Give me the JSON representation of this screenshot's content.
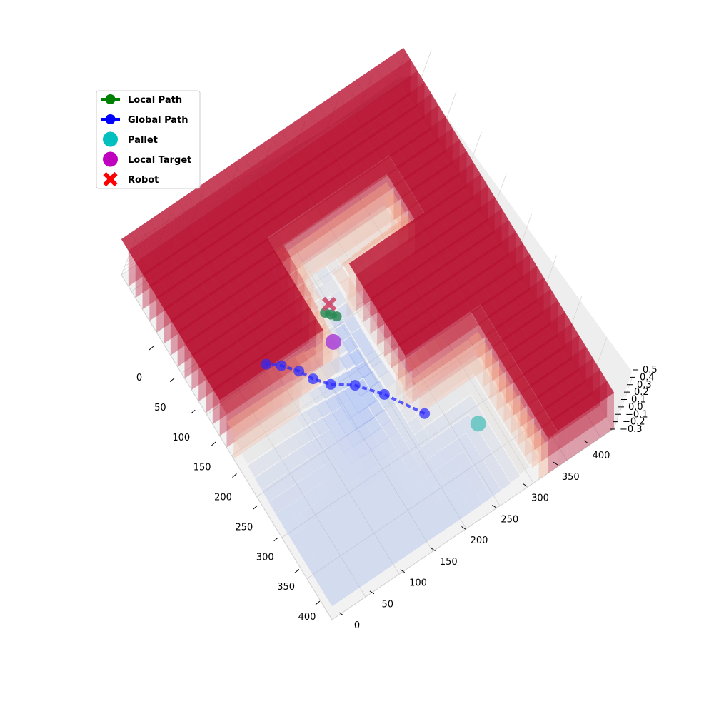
{
  "chart_data": {
    "type": "surface3d",
    "title": "",
    "xlabel": "",
    "ylabel": "",
    "zlabel": "",
    "xlim": [
      0,
      420
    ],
    "ylim": [
      0,
      420
    ],
    "zlim": [
      -0.3,
      0.5
    ],
    "x_ticks": [
      "0",
      "50",
      "100",
      "150",
      "200",
      "250",
      "300",
      "350",
      "400"
    ],
    "y_ticks": [
      "0",
      "50",
      "100",
      "150",
      "200",
      "250",
      "300",
      "350",
      "400"
    ],
    "z_ticks": [
      "−0.3",
      "−0.2",
      "−0.1",
      "0.0",
      "0.1",
      "0.2",
      "0.3",
      "0.4",
      "0.5"
    ],
    "grid": true,
    "colormap": "coolwarm",
    "legend_position": "top-left",
    "legend": [
      {
        "label": "Local Path",
        "marker": "line-circle",
        "color": "#008000"
      },
      {
        "label": "Global Path",
        "marker": "line-circle",
        "color": "#0000ff"
      },
      {
        "label": "Pallet",
        "marker": "circle",
        "color": "#00bfbf"
      },
      {
        "label": "Local Target",
        "marker": "circle",
        "color": "#bf00bf"
      },
      {
        "label": "Robot",
        "marker": "x",
        "color": "#ff0000"
      }
    ],
    "global_path": {
      "color": "#2a2aff",
      "points": [
        [
          220,
          110
        ],
        [
          190,
          150
        ],
        [
          165,
          175
        ],
        [
          140,
          190
        ],
        [
          125,
          205
        ],
        [
          115,
          220
        ],
        [
          100,
          235
        ],
        [
          85,
          245
        ]
      ]
    },
    "local_path": {
      "color": "#2e8b57",
      "points": [
        [
          180,
          255
        ],
        [
          185,
          250
        ],
        [
          190,
          245
        ]
      ]
    },
    "pallet": {
      "color": "#5fc4bf",
      "x": 270,
      "y": 70
    },
    "local_target": {
      "color": "#a83fd8",
      "x": 170,
      "y": 225
    },
    "robot": {
      "color": "#d04a6a",
      "x": 190,
      "y": 260
    }
  }
}
